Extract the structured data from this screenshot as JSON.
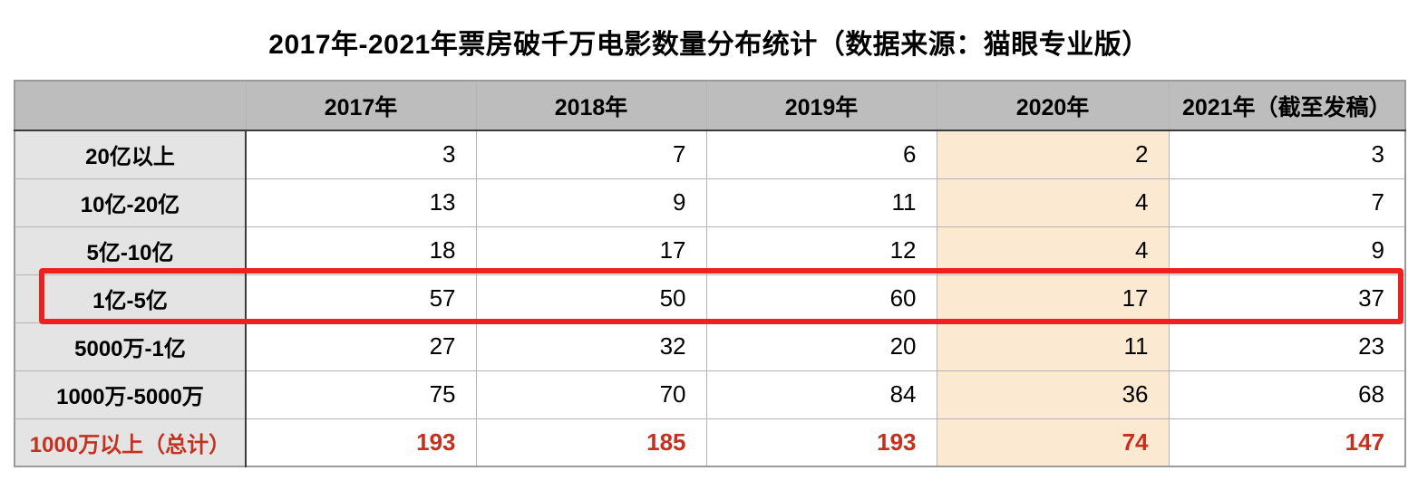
{
  "title": "2017年-2021年票房破千万电影数量分布统计（数据来源：猫眼专业版）",
  "chart_data": {
    "type": "table",
    "title": "2017年-2021年票房破千万电影数量分布统计（数据来源：猫眼专业版）",
    "columns": [
      "2017年",
      "2018年",
      "2019年",
      "2020年",
      "2021年（截至发稿）"
    ],
    "rows": [
      {
        "label": "20亿以上",
        "values": [
          3,
          7,
          6,
          2,
          3
        ]
      },
      {
        "label": "10亿-20亿",
        "values": [
          13,
          9,
          11,
          4,
          7
        ]
      },
      {
        "label": "5亿-10亿",
        "values": [
          18,
          17,
          12,
          4,
          9
        ]
      },
      {
        "label": "1亿-5亿",
        "values": [
          57,
          50,
          60,
          17,
          37
        ]
      },
      {
        "label": "5000万-1亿",
        "values": [
          27,
          32,
          20,
          11,
          23
        ]
      },
      {
        "label": "1000万-5000万",
        "values": [
          75,
          70,
          84,
          36,
          68
        ]
      },
      {
        "label": "1000万以上（总计）",
        "values": [
          193,
          185,
          193,
          74,
          147
        ]
      }
    ],
    "highlighted_row": "1亿-5亿",
    "highlighted_column": "2020年",
    "total_row": "1000万以上（总计）"
  },
  "colors": {
    "header_bg": "#bdbdbd",
    "label_column_bg": "#e4e4e4",
    "highlight_column_bg": "#fce9d2",
    "total_text_red": "#c5301f",
    "highlight_box_red": "#ee2020"
  }
}
